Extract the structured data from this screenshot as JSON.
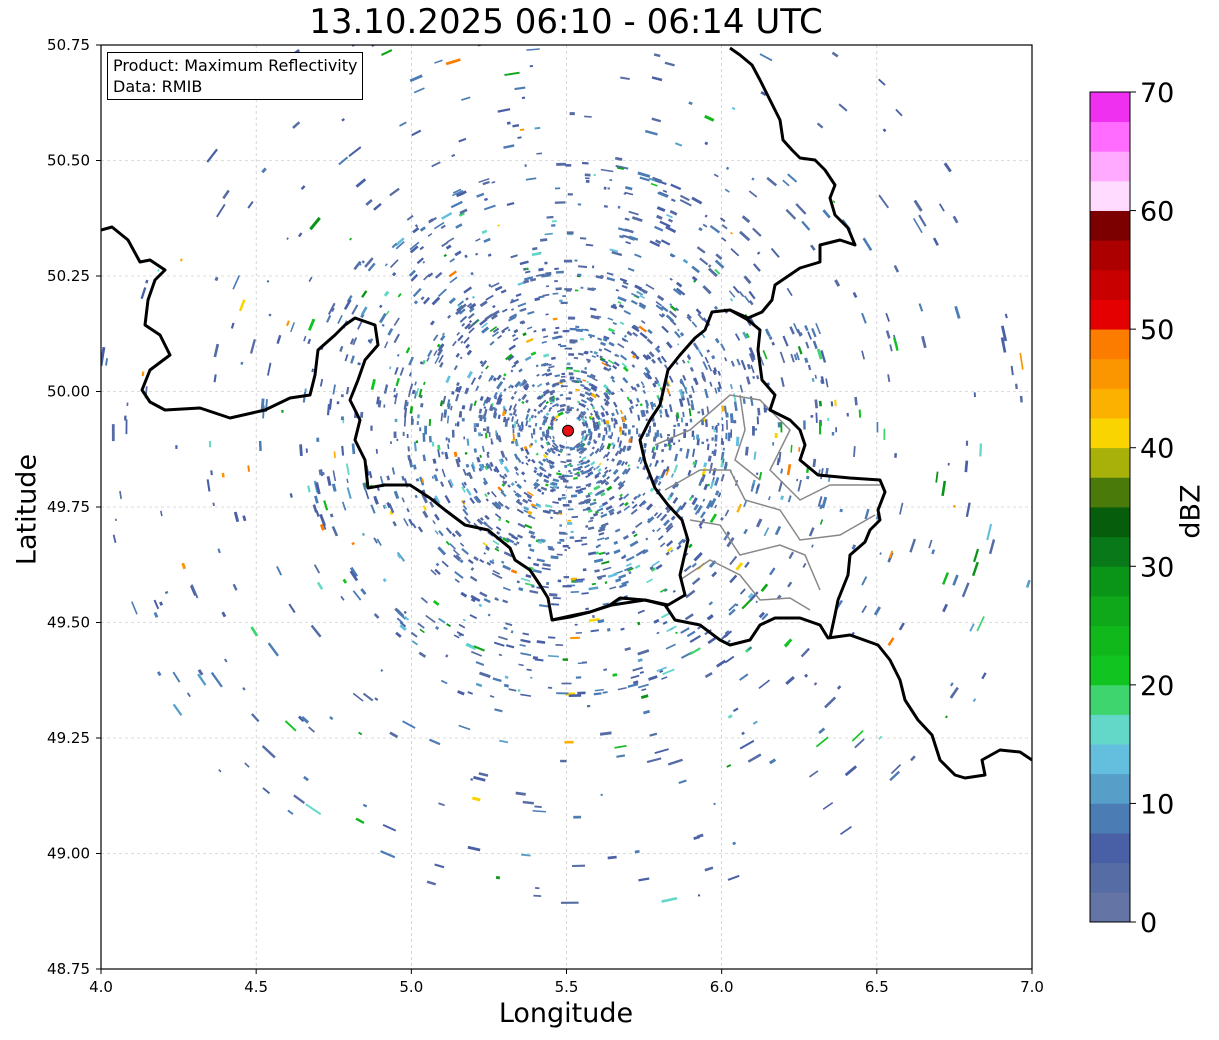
{
  "title": "13.10.2025 06:10 - 06:14 UTC",
  "info_box": {
    "product": "Product: Maximum Reflectivity",
    "data": "Data: RMIB"
  },
  "x_axis": {
    "label": "Longitude",
    "ticks": [
      "4.0",
      "4.5",
      "5.0",
      "5.5",
      "6.0",
      "6.5",
      "7.0"
    ],
    "range": [
      4.0,
      7.0
    ]
  },
  "y_axis": {
    "label": "Latitude",
    "ticks": [
      "50.75",
      "50.50",
      "50.25",
      "50.00",
      "49.75",
      "49.50",
      "49.25",
      "49.00",
      "48.75"
    ],
    "range": [
      48.75,
      50.75
    ]
  },
  "colorbar": {
    "label": "dBZ",
    "range": [
      0,
      70
    ],
    "tick_labels": [
      "0",
      "10",
      "20",
      "30",
      "40",
      "50",
      "60",
      "70"
    ],
    "colors": [
      "#6474a4",
      "#566ca4",
      "#4a60a6",
      "#4c7cb4",
      "#579fc8",
      "#64bfdf",
      "#64d8c8",
      "#3ed46e",
      "#12c420",
      "#10b81c",
      "#0ea81a",
      "#0a9418",
      "#087818",
      "#065e0c",
      "#4a7a0a",
      "#a8b00a",
      "#fad400",
      "#fcb000",
      "#fc9600",
      "#fc7c00",
      "#e40000",
      "#c80000",
      "#ac0000",
      "#7c0000",
      "#ffdcff",
      "#ffaaff",
      "#ff6cff",
      "#f030f0"
    ]
  },
  "radar_site": {
    "lon": 5.505,
    "lat": 49.915,
    "color": "#e81010"
  },
  "map_layers": [
    "radar-echoes",
    "country-borders",
    "province-borders",
    "gridlines"
  ]
}
